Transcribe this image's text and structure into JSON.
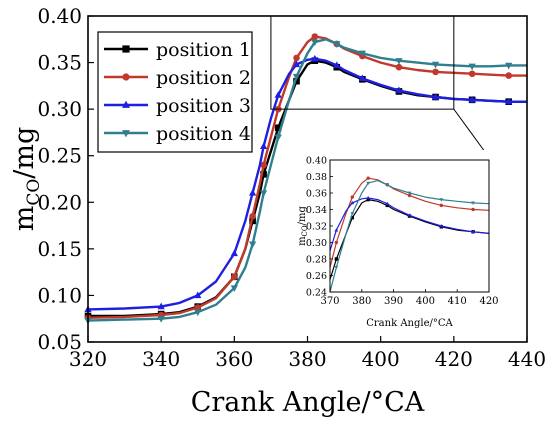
{
  "chart_data": [
    {
      "type": "line",
      "xlabel": "Crank Angle/°CA",
      "ylabel_main": "m",
      "ylabel_sub": "CO",
      "ylabel_unit": "/mg",
      "xlim": [
        320,
        440
      ],
      "ylim": [
        0.05,
        0.4
      ],
      "xticks": [
        "320",
        "340",
        "360",
        "380",
        "400",
        "420",
        "440"
      ],
      "yticks": [
        "0.05",
        "0.10",
        "0.15",
        "0.20",
        "0.25",
        "0.30",
        "0.35",
        "0.40"
      ],
      "legend_position": "top-left",
      "grid": false,
      "series": [
        {
          "name": "position 1",
          "color": "#000000",
          "marker": "square",
          "x": [
            320,
            330,
            340,
            345,
            350,
            355,
            360,
            363,
            365,
            367,
            368,
            370,
            372,
            375,
            377,
            380,
            382,
            385,
            388,
            390,
            395,
            400,
            405,
            410,
            415,
            420,
            425,
            430,
            435,
            440
          ],
          "y": [
            0.078,
            0.078,
            0.08,
            0.082,
            0.088,
            0.098,
            0.12,
            0.15,
            0.18,
            0.21,
            0.23,
            0.255,
            0.28,
            0.31,
            0.33,
            0.348,
            0.352,
            0.35,
            0.345,
            0.34,
            0.332,
            0.325,
            0.319,
            0.315,
            0.313,
            0.311,
            0.31,
            0.309,
            0.308,
            0.308
          ]
        },
        {
          "name": "position 2",
          "color": "#c0392b",
          "marker": "circle",
          "x": [
            320,
            330,
            340,
            345,
            350,
            355,
            360,
            363,
            365,
            367,
            368,
            370,
            372,
            375,
            377,
            380,
            382,
            385,
            388,
            390,
            395,
            400,
            405,
            410,
            415,
            420,
            425,
            430,
            435,
            440
          ],
          "y": [
            0.076,
            0.077,
            0.079,
            0.081,
            0.087,
            0.097,
            0.12,
            0.15,
            0.185,
            0.22,
            0.24,
            0.27,
            0.3,
            0.335,
            0.355,
            0.372,
            0.378,
            0.376,
            0.37,
            0.365,
            0.357,
            0.35,
            0.345,
            0.342,
            0.34,
            0.339,
            0.338,
            0.337,
            0.336,
            0.336
          ]
        },
        {
          "name": "position 3",
          "color": "#1f1fe0",
          "marker": "triangle-up",
          "x": [
            320,
            330,
            340,
            345,
            350,
            355,
            360,
            363,
            365,
            367,
            368,
            370,
            372,
            375,
            377,
            380,
            382,
            385,
            388,
            390,
            395,
            400,
            405,
            410,
            415,
            420,
            425,
            430,
            435,
            440
          ],
          "y": [
            0.085,
            0.086,
            0.088,
            0.092,
            0.1,
            0.115,
            0.145,
            0.18,
            0.21,
            0.24,
            0.26,
            0.29,
            0.315,
            0.338,
            0.348,
            0.353,
            0.354,
            0.352,
            0.347,
            0.342,
            0.333,
            0.326,
            0.32,
            0.316,
            0.313,
            0.311,
            0.31,
            0.309,
            0.308,
            0.308
          ]
        },
        {
          "name": "position 4",
          "color": "#2f7f8f",
          "marker": "triangle-down",
          "x": [
            320,
            330,
            340,
            345,
            350,
            355,
            360,
            363,
            365,
            367,
            368,
            370,
            372,
            375,
            377,
            380,
            382,
            385,
            388,
            390,
            395,
            400,
            405,
            410,
            415,
            420,
            425,
            430,
            435,
            440
          ],
          "y": [
            0.073,
            0.074,
            0.075,
            0.077,
            0.082,
            0.09,
            0.108,
            0.13,
            0.155,
            0.19,
            0.21,
            0.24,
            0.27,
            0.31,
            0.335,
            0.36,
            0.372,
            0.375,
            0.37,
            0.366,
            0.36,
            0.355,
            0.352,
            0.35,
            0.348,
            0.347,
            0.346,
            0.346,
            0.347,
            0.347
          ]
        }
      ]
    },
    {
      "type": "line",
      "xlabel": "Crank Angle/°CA",
      "ylabel_main": "m",
      "ylabel_sub": "CO",
      "ylabel_unit": "/mg",
      "xlim": [
        370,
        420
      ],
      "ylim": [
        0.24,
        0.4
      ],
      "xticks": [
        "370",
        "380",
        "390",
        "400",
        "410",
        "420"
      ],
      "yticks": [
        "0.24",
        "0.26",
        "0.28",
        "0.30",
        "0.32",
        "0.34",
        "0.36",
        "0.38",
        "0.40"
      ],
      "series": [
        {
          "name": "position 1",
          "color": "#000000",
          "marker": "square",
          "x": [
            370,
            372,
            375,
            377,
            380,
            382,
            385,
            388,
            390,
            395,
            400,
            405,
            410,
            415,
            420
          ],
          "y": [
            0.255,
            0.28,
            0.31,
            0.33,
            0.348,
            0.352,
            0.35,
            0.345,
            0.34,
            0.332,
            0.325,
            0.319,
            0.315,
            0.313,
            0.311
          ]
        },
        {
          "name": "position 2",
          "color": "#c0392b",
          "marker": "circle",
          "x": [
            370,
            372,
            375,
            377,
            380,
            382,
            385,
            388,
            390,
            395,
            400,
            405,
            410,
            415,
            420
          ],
          "y": [
            0.27,
            0.3,
            0.335,
            0.355,
            0.372,
            0.378,
            0.376,
            0.37,
            0.365,
            0.357,
            0.35,
            0.345,
            0.342,
            0.34,
            0.339
          ]
        },
        {
          "name": "position 3",
          "color": "#1f1fe0",
          "marker": "triangle-up",
          "x": [
            370,
            372,
            375,
            377,
            380,
            382,
            385,
            388,
            390,
            395,
            400,
            405,
            410,
            415,
            420
          ],
          "y": [
            0.29,
            0.315,
            0.338,
            0.348,
            0.353,
            0.354,
            0.352,
            0.347,
            0.342,
            0.333,
            0.326,
            0.32,
            0.316,
            0.313,
            0.311
          ]
        },
        {
          "name": "position 4",
          "color": "#2f7f8f",
          "marker": "triangle-down",
          "x": [
            370,
            372,
            375,
            377,
            380,
            382,
            385,
            388,
            390,
            395,
            400,
            405,
            410,
            415,
            420
          ],
          "y": [
            0.24,
            0.27,
            0.31,
            0.335,
            0.36,
            0.372,
            0.375,
            0.37,
            0.366,
            0.36,
            0.355,
            0.352,
            0.35,
            0.348,
            0.347
          ]
        }
      ]
    }
  ]
}
